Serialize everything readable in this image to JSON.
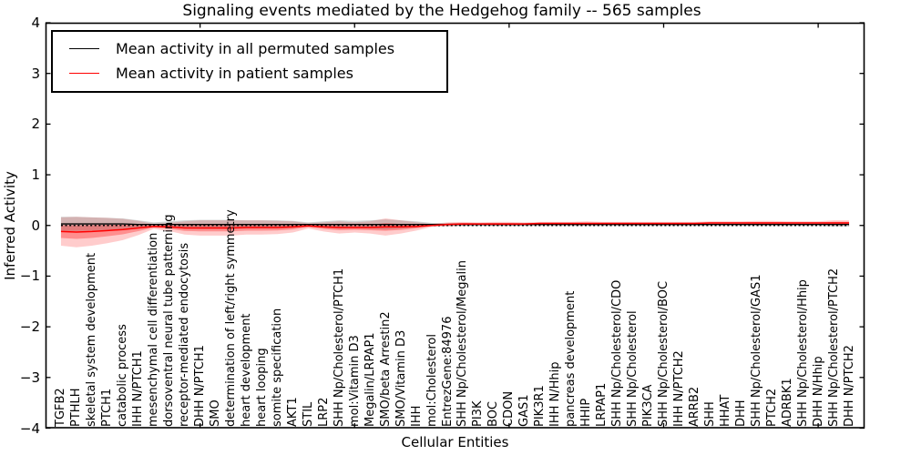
{
  "figure": {
    "title": "Signaling events mediated by the Hedgehog family -- 565 samples",
    "xlabel": "Cellular Entities",
    "ylabel": "Inferred Activity"
  },
  "legend": {
    "entries": [
      {
        "label": "Mean activity in all permuted samples",
        "color": "#000000"
      },
      {
        "label": "Mean activity in patient samples",
        "color": "#ff0000"
      }
    ]
  },
  "colors": {
    "permuted_line": "#000000",
    "patient_line": "#ff0000",
    "patient_band": "rgba(255,0,0,0.20)",
    "patient_inner_band": "rgba(255,0,0,0.30)",
    "permuted_band": "rgba(130,130,130,0.35)",
    "zero_line": "#000000",
    "axis": "#000000"
  },
  "chart_data": {
    "type": "line",
    "title": "Signaling events mediated by the Hedgehog family -- 565 samples",
    "xlabel": "Cellular Entities",
    "ylabel": "Inferred Activity",
    "ylim": [
      -4,
      4
    ],
    "xlim": [
      0,
      53
    ],
    "ytick_values": [
      4,
      3,
      2,
      1,
      0,
      -1,
      -2,
      -3,
      -4
    ],
    "ytick_labels": [
      "4",
      "3",
      "2",
      "1",
      "0",
      "−1",
      "−2",
      "−3",
      "−4"
    ],
    "xtick_values": [
      10,
      20,
      30,
      40,
      50
    ],
    "grid": false,
    "legend_position": "upper left",
    "zero_line": {
      "y": 0,
      "style": "dotted"
    },
    "categories": [
      "TGFB2",
      "PTHLH",
      "skeletal system development",
      "PTCH1",
      "catabolic process",
      "IHH N/PTCH1",
      "mesenchymal cell differentiation",
      "dorsoventral neural tube patterning",
      "receptor-mediated endocytosis",
      "DHH N/PTCH1",
      "SMO",
      "determination of left/right symmetry",
      "heart development",
      "heart looping",
      "somite specification",
      "AKT1",
      "STIL",
      "LRP2",
      "SHH Np/Cholesterol/PTCH1",
      "mol:Vitamin D3",
      "Megalin/LRPAP1",
      "SMO/beta Arrestin2",
      "SMO/Vitamin D3",
      "IHH",
      "mol:Cholesterol",
      "EntrezGene:84976",
      "SHH Np/Cholesterol/Megalin",
      "PI3K",
      "BOC",
      "CDON",
      "GAS1",
      "PIK3R1",
      "IHH N/Hhip",
      "pancreas development",
      "HHIP",
      "LRPAP1",
      "SHH Np/Cholesterol/CDO",
      "SHH Np/Cholesterol",
      "PIK3CA",
      "SHH Np/Cholesterol/BOC",
      "IHH N/PTCH2",
      "ARRB2",
      "SHH",
      "HHAT",
      "DHH",
      "SHH Np/Cholesterol/GAS1",
      "PTCH2",
      "ADRBK1",
      "SHH Np/Cholesterol/Hhip",
      "DHH N/Hhip",
      "SHH Np/Cholesterol/PTCH2",
      "DHH N/PTCH2"
    ],
    "series": [
      {
        "name": "Mean activity in all permuted samples",
        "color": "#000000",
        "mean": [
          0.03,
          0.03,
          0.03,
          0.03,
          0.03,
          0.02,
          0.02,
          0.02,
          0.02,
          0.02,
          0.02,
          0.02,
          0.02,
          0.02,
          0.02,
          0.02,
          0.02,
          0.02,
          0.02,
          0.02,
          0.02,
          0.02,
          0.02,
          0.02,
          0.02,
          0.02,
          0.02,
          0.02,
          0.02,
          0.02,
          0.02,
          0.02,
          0.02,
          0.02,
          0.02,
          0.02,
          0.02,
          0.02,
          0.02,
          0.02,
          0.02,
          0.02,
          0.02,
          0.02,
          0.02,
          0.02,
          0.02,
          0.02,
          0.02,
          0.02,
          0.02,
          0.02
        ],
        "std": [
          0.14,
          0.14,
          0.13,
          0.12,
          0.11,
          0.08,
          0.04,
          0.06,
          0.08,
          0.09,
          0.09,
          0.09,
          0.08,
          0.08,
          0.08,
          0.07,
          0.04,
          0.06,
          0.08,
          0.07,
          0.08,
          0.1,
          0.08,
          0.06,
          0.03,
          0.03,
          0.03,
          0.03,
          0.03,
          0.03,
          0.03,
          0.03,
          0.03,
          0.03,
          0.03,
          0.03,
          0.03,
          0.03,
          0.03,
          0.03,
          0.03,
          0.03,
          0.03,
          0.03,
          0.03,
          0.03,
          0.03,
          0.03,
          0.03,
          0.03,
          0.04,
          0.04
        ]
      },
      {
        "name": "Mean activity in patient samples",
        "color": "#ff0000",
        "mean": [
          -0.12,
          -0.13,
          -0.12,
          -0.1,
          -0.08,
          -0.05,
          -0.02,
          -0.03,
          -0.05,
          -0.05,
          -0.05,
          -0.05,
          -0.04,
          -0.04,
          -0.04,
          -0.03,
          -0.01,
          -0.03,
          -0.04,
          -0.04,
          -0.04,
          -0.03,
          -0.03,
          -0.02,
          0.0,
          0.02,
          0.03,
          0.03,
          0.03,
          0.03,
          0.03,
          0.04,
          0.04,
          0.04,
          0.04,
          0.04,
          0.04,
          0.04,
          0.04,
          0.04,
          0.04,
          0.04,
          0.05,
          0.05,
          0.05,
          0.05,
          0.05,
          0.05,
          0.05,
          0.05,
          0.05,
          0.05
        ],
        "std": [
          0.28,
          0.3,
          0.28,
          0.25,
          0.21,
          0.14,
          0.05,
          0.08,
          0.13,
          0.15,
          0.15,
          0.15,
          0.14,
          0.14,
          0.13,
          0.11,
          0.05,
          0.09,
          0.12,
          0.1,
          0.12,
          0.17,
          0.13,
          0.08,
          0.03,
          0.04,
          0.04,
          0.03,
          0.04,
          0.04,
          0.03,
          0.03,
          0.03,
          0.03,
          0.04,
          0.03,
          0.03,
          0.03,
          0.03,
          0.03,
          0.03,
          0.03,
          0.03,
          0.03,
          0.03,
          0.04,
          0.04,
          0.03,
          0.03,
          0.03,
          0.05,
          0.05
        ]
      }
    ]
  }
}
